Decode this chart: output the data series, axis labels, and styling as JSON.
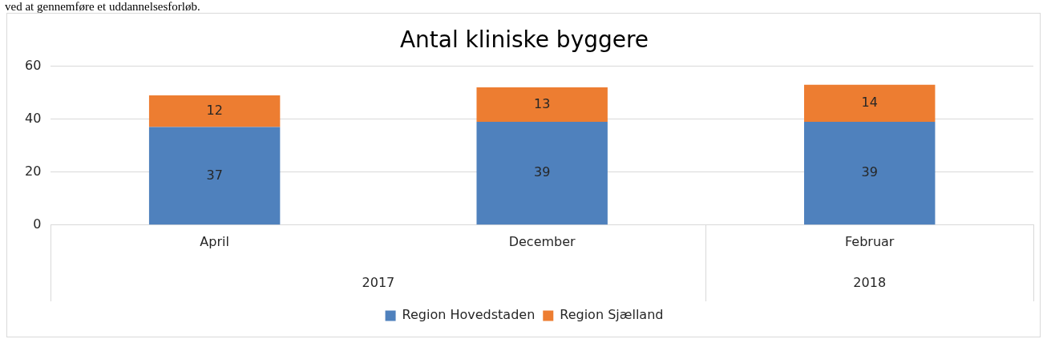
{
  "chart_data": {
    "type": "bar",
    "title": "Antal kliniske byggere",
    "annotations": [
      "ved at gennemføre et uddannelsesforløb.",
      "2017",
      "2018"
    ],
    "categories": [
      "April",
      "December",
      "Februar"
    ],
    "series": [
      {
        "name": "Region Hovedstaden",
        "color": "#4f81bd",
        "values": [
          37,
          39,
          39
        ]
      },
      {
        "name": "Region Sjælland",
        "color": "#ed7d31",
        "values": [
          12,
          13,
          14
        ]
      }
    ],
    "stacked": true,
    "ylim": [
      0,
      60
    ],
    "yticks": [
      0,
      20,
      40,
      60
    ],
    "grid": "y",
    "legend": "bottom",
    "data_labels": true
  }
}
